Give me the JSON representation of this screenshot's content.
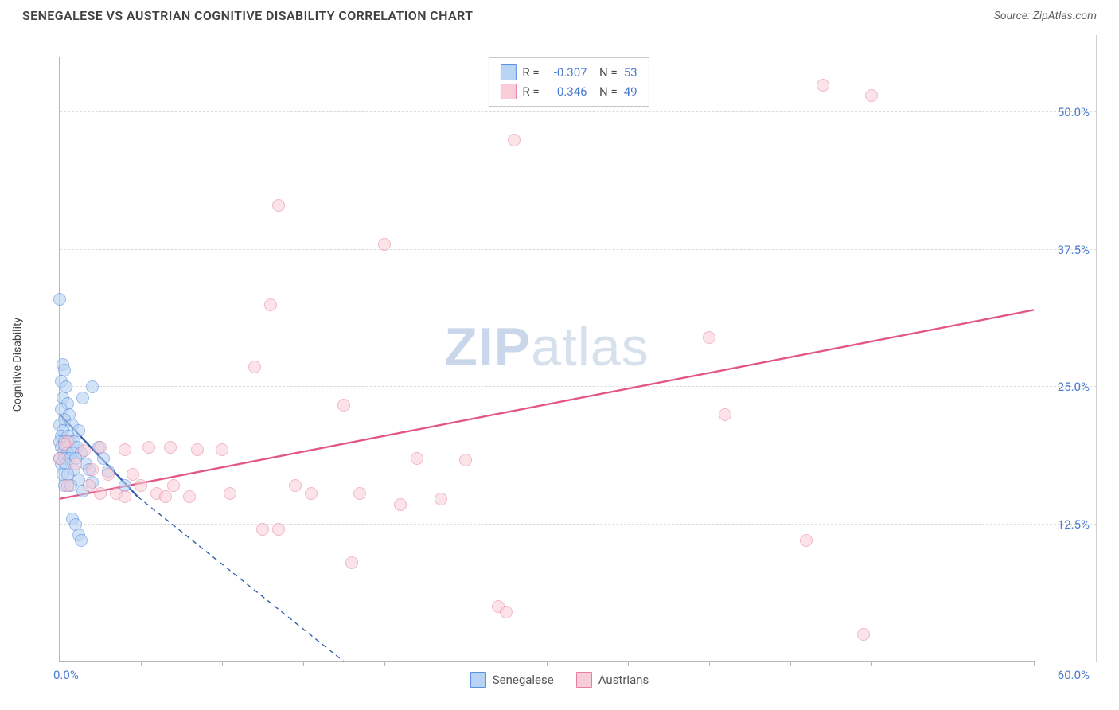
{
  "header": {
    "title": "SENEGALESE VS AUSTRIAN COGNITIVE DISABILITY CORRELATION CHART",
    "source": "Source: ZipAtlas.com"
  },
  "watermark": {
    "pre": "ZIP",
    "post": "atlas"
  },
  "chart": {
    "type": "scatter",
    "ylabel": "Cognitive Disability",
    "xlim": [
      0,
      60
    ],
    "ylim": [
      0,
      55
    ],
    "xlim_labels": {
      "min": "0.0%",
      "max": "60.0%"
    },
    "ytick_values": [
      12.5,
      25.0,
      37.5,
      50.0
    ],
    "ytick_labels": [
      "12.5%",
      "25.0%",
      "37.5%",
      "50.0%"
    ],
    "xtick_values": [
      0,
      5,
      10,
      15,
      20,
      25,
      30,
      35,
      40,
      45,
      50,
      55,
      60
    ],
    "background_color": "#ffffff",
    "grid_color": "#dadada",
    "axis_color": "#b8b8b8",
    "label_color": "#4a7bd0",
    "marker_size": 16,
    "stats": [
      {
        "r": "-0.307",
        "n": "53",
        "swatch_fill": "#b9d3f3",
        "swatch_stroke": "#5b8fe0"
      },
      {
        "r": "0.346",
        "n": "49",
        "swatch_fill": "#f8cdd7",
        "swatch_stroke": "#e77e9f"
      }
    ],
    "series": [
      {
        "name": "Senegalese",
        "fill": "#b9d3f3",
        "stroke": "#5b8fe0",
        "fill_opacity": 0.6,
        "trend": {
          "solid": {
            "x1": 0,
            "y1": 22.5,
            "x2": 4.8,
            "y2": 15.0
          },
          "dashed": {
            "x1": 4.8,
            "y1": 15.0,
            "x2": 17.5,
            "y2": 0
          },
          "color": "#2c5ea8",
          "width": 2.3,
          "dash": "6,5"
        },
        "points": [
          [
            0.0,
            33.0
          ],
          [
            0.2,
            27.0
          ],
          [
            0.3,
            26.5
          ],
          [
            0.1,
            25.5
          ],
          [
            0.4,
            25.0
          ],
          [
            2.0,
            25.0
          ],
          [
            0.2,
            24.0
          ],
          [
            0.5,
            23.5
          ],
          [
            0.1,
            23.0
          ],
          [
            1.4,
            24.0
          ],
          [
            0.6,
            22.5
          ],
          [
            0.3,
            22.0
          ],
          [
            0.0,
            21.5
          ],
          [
            0.8,
            21.5
          ],
          [
            0.2,
            21.0
          ],
          [
            1.2,
            21.0
          ],
          [
            0.1,
            20.5
          ],
          [
            0.5,
            20.5
          ],
          [
            0.0,
            20.0
          ],
          [
            0.3,
            20.0
          ],
          [
            0.7,
            20.0
          ],
          [
            0.9,
            20.0
          ],
          [
            0.1,
            19.5
          ],
          [
            0.4,
            19.5
          ],
          [
            1.1,
            19.5
          ],
          [
            2.4,
            19.5
          ],
          [
            0.2,
            19.0
          ],
          [
            0.5,
            19.0
          ],
          [
            0.8,
            19.0
          ],
          [
            1.3,
            19.0
          ],
          [
            0.0,
            18.5
          ],
          [
            0.3,
            18.5
          ],
          [
            0.6,
            18.5
          ],
          [
            1.0,
            18.5
          ],
          [
            1.6,
            18.0
          ],
          [
            2.7,
            18.5
          ],
          [
            0.1,
            18.0
          ],
          [
            0.4,
            18.0
          ],
          [
            0.9,
            17.5
          ],
          [
            1.8,
            17.5
          ],
          [
            0.2,
            17.0
          ],
          [
            0.5,
            17.0
          ],
          [
            1.2,
            16.5
          ],
          [
            2.0,
            16.3
          ],
          [
            3.0,
            17.3
          ],
          [
            0.3,
            16.0
          ],
          [
            0.7,
            16.0
          ],
          [
            1.4,
            15.5
          ],
          [
            4.0,
            16.0
          ],
          [
            0.8,
            13.0
          ],
          [
            1.0,
            12.5
          ],
          [
            1.2,
            11.5
          ],
          [
            1.3,
            11.0
          ]
        ]
      },
      {
        "name": "Austrians",
        "fill": "#f8cdd7",
        "stroke": "#e77e9f",
        "fill_opacity": 0.55,
        "trend": {
          "solid": {
            "x1": 0,
            "y1": 14.8,
            "x2": 60,
            "y2": 32.0
          },
          "color": "#e35582",
          "width": 2.3
        },
        "points": [
          [
            47.0,
            52.5
          ],
          [
            50.0,
            51.5
          ],
          [
            28.0,
            47.5
          ],
          [
            13.5,
            41.5
          ],
          [
            20.0,
            38.0
          ],
          [
            13.0,
            32.5
          ],
          [
            40.0,
            29.5
          ],
          [
            12.0,
            26.8
          ],
          [
            17.5,
            23.3
          ],
          [
            41.0,
            22.5
          ],
          [
            0.5,
            20.0
          ],
          [
            0.0,
            18.5
          ],
          [
            1.5,
            19.2
          ],
          [
            2.5,
            19.5
          ],
          [
            4.0,
            19.3
          ],
          [
            5.5,
            19.5
          ],
          [
            6.8,
            19.5
          ],
          [
            8.5,
            19.3
          ],
          [
            10.0,
            19.3
          ],
          [
            22.0,
            18.5
          ],
          [
            25.0,
            18.3
          ],
          [
            1.0,
            18.0
          ],
          [
            2.0,
            17.5
          ],
          [
            3.0,
            17.0
          ],
          [
            4.5,
            17.0
          ],
          [
            0.5,
            16.0
          ],
          [
            1.8,
            16.0
          ],
          [
            5.0,
            16.0
          ],
          [
            7.0,
            16.0
          ],
          [
            14.5,
            16.0
          ],
          [
            2.5,
            15.3
          ],
          [
            3.5,
            15.3
          ],
          [
            6.0,
            15.3
          ],
          [
            8.0,
            15.0
          ],
          [
            10.5,
            15.3
          ],
          [
            15.5,
            15.3
          ],
          [
            18.5,
            15.3
          ],
          [
            21.0,
            14.3
          ],
          [
            23.5,
            14.8
          ],
          [
            4.0,
            15.0
          ],
          [
            6.5,
            15.0
          ],
          [
            12.5,
            12.0
          ],
          [
            13.5,
            12.0
          ],
          [
            46.0,
            11.0
          ],
          [
            18.0,
            9.0
          ],
          [
            27.0,
            5.0
          ],
          [
            27.5,
            4.5
          ],
          [
            49.5,
            2.5
          ],
          [
            0.3,
            19.8
          ]
        ]
      }
    ],
    "legend": [
      {
        "label": "Senegalese",
        "fill": "#b9d3f3",
        "stroke": "#5b8fe0"
      },
      {
        "label": "Austrians",
        "fill": "#f8cdd7",
        "stroke": "#e77e9f"
      }
    ]
  }
}
